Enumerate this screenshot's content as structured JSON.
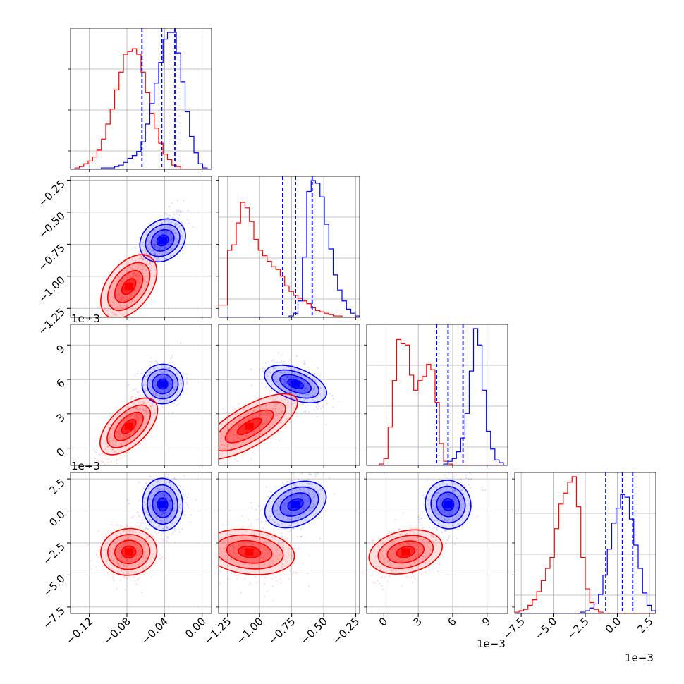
{
  "chart_data": {
    "type": "corner",
    "colors": {
      "series_a": "#0000ff",
      "series_b": "#ff0000",
      "grid": "#b0b0b0"
    },
    "grid": true,
    "n_params": 4,
    "ranges": [
      [
        -0.14,
        0.01
      ],
      [
        -1.32,
        -0.22
      ],
      [
        -1.5,
        10.8
      ],
      [
        -8.0,
        3.0
      ]
    ],
    "scale_labels": {
      "p1_row": "1e−3",
      "p2_row": "1e−3",
      "p2_col": "1e−3",
      "p3_col": "1e−3"
    },
    "ticks": {
      "x": [
        {
          "values": [
            -0.12,
            -0.08,
            -0.04,
            0.0
          ],
          "labels": [
            "−0.12",
            "−0.08",
            "−0.04",
            "0.00"
          ]
        },
        {
          "values": [
            -1.25,
            -1.0,
            -0.75,
            -0.5,
            -0.25
          ],
          "labels": [
            "−1.25",
            "−1.00",
            "−0.75",
            "−0.50",
            "−0.25"
          ]
        },
        {
          "values": [
            0,
            3,
            6,
            9
          ],
          "labels": [
            "0",
            "3",
            "6",
            "9"
          ]
        },
        {
          "values": [
            -7.5,
            -5.0,
            -2.5,
            0.0,
            2.5
          ],
          "labels": [
            "−7.5",
            "−5.0",
            "−2.5",
            "0.0",
            "2.5"
          ]
        }
      ],
      "y": [
        null,
        {
          "values": [
            -1.25,
            -1.0,
            -0.75,
            -0.5,
            -0.25
          ],
          "labels": [
            "−1.25",
            "−1.00",
            "−0.75",
            "−0.50",
            "−0.25"
          ]
        },
        {
          "values": [
            0,
            3,
            6,
            9
          ],
          "labels": [
            "0",
            "3",
            "6",
            "9"
          ]
        },
        {
          "values": [
            -7.5,
            -5.0,
            -2.5,
            0.0,
            2.5
          ],
          "labels": [
            "−7.5",
            "−5.0",
            "−2.5",
            "0.0",
            "2.5"
          ]
        }
      ]
    },
    "series": [
      {
        "key": "series_a",
        "means": [
          -0.042,
          -0.72,
          5.6,
          0.5
        ],
        "stds": [
          0.011,
          0.11,
          0.95,
          1.1
        ],
        "quantiles": [
          [
            -0.064,
            -0.043,
            -0.029
          ],
          [
            -0.82,
            -0.72,
            -0.59
          ],
          [
            4.6,
            5.6,
            6.9
          ],
          [
            -0.9,
            0.4,
            1.2
          ]
        ],
        "corr": [
          [
            1,
            0.55,
            0.1,
            0.05
          ],
          [
            0.55,
            1,
            -0.5,
            0.45
          ],
          [
            0.1,
            -0.5,
            1,
            0.2
          ],
          [
            0.05,
            0.45,
            0.2,
            1
          ]
        ]
      },
      {
        "key": "series_b",
        "means": [
          -0.078,
          -1.08,
          1.9,
          -3.2
        ],
        "stds": [
          0.015,
          0.17,
          1.5,
          1.0
        ],
        "quantiles": [],
        "corr": [
          [
            1,
            0.85,
            0.8,
            0.1
          ],
          [
            0.85,
            1,
            0.75,
            -0.2
          ],
          [
            0.8,
            0.75,
            1,
            0.3
          ],
          [
            0.1,
            -0.2,
            0.3,
            1
          ]
        ]
      }
    ],
    "histograms": [
      {
        "series_a": [
          0,
          0,
          0,
          0,
          0,
          0,
          0,
          1,
          1,
          1,
          2,
          3,
          5,
          8,
          10,
          13,
          20,
          33,
          48,
          63,
          78,
          95,
          100,
          100,
          85,
          64,
          42,
          24,
          12,
          4,
          1,
          0
        ],
        "series_b": [
          0,
          1,
          2,
          4,
          6,
          9,
          14,
          22,
          33,
          44,
          58,
          71,
          84,
          86,
          88,
          84,
          71,
          56,
          41,
          30,
          19,
          11,
          7,
          3,
          2,
          0,
          0,
          0,
          0,
          0,
          0,
          0
        ]
      },
      {
        "series_a": [
          0,
          0,
          0,
          0,
          0,
          0,
          0,
          0,
          0,
          0,
          0,
          0,
          0,
          0,
          0,
          0,
          1,
          3,
          12,
          44,
          92,
          100,
          98,
          88,
          68,
          50,
          31,
          20,
          12,
          6,
          3,
          1
        ],
        "series_b": [
          9,
          9,
          49,
          53,
          69,
          84,
          80,
          70,
          57,
          49,
          45,
          41,
          37,
          35,
          30,
          23,
          19,
          16,
          14,
          12,
          10,
          7,
          5,
          4,
          3,
          2,
          1,
          1,
          0,
          0,
          0,
          0
        ]
      },
      {
        "series_a": [
          0,
          0,
          0,
          0,
          0,
          0,
          0,
          0,
          0,
          0,
          0,
          0,
          0,
          0,
          0,
          0,
          0,
          0,
          1,
          3,
          5,
          10,
          20,
          38,
          69,
          100,
          88,
          55,
          25,
          12,
          4,
          2,
          0
        ],
        "series_b": [
          0,
          0,
          0,
          1,
          5,
          28,
          62,
          92,
          89,
          88,
          66,
          55,
          62,
          65,
          74,
          70,
          46,
          16,
          3,
          1,
          0,
          0,
          0,
          0,
          0,
          0,
          0,
          0,
          0,
          0,
          0,
          0,
          0
        ]
      },
      {
        "series_a": [
          0,
          0,
          0,
          0,
          0,
          0,
          0,
          0,
          0,
          0,
          0,
          0,
          0,
          0,
          0,
          1,
          2,
          4,
          7,
          14,
          28,
          47,
          66,
          77,
          87,
          85,
          69,
          50,
          33,
          15,
          6,
          2
        ],
        "series_b": [
          1,
          2,
          3,
          6,
          10,
          16,
          24,
          33,
          41,
          62,
          80,
          88,
          96,
          100,
          78,
          41,
          18,
          8,
          3,
          1,
          0,
          0,
          0,
          0,
          0,
          0,
          0,
          0,
          0,
          0,
          0,
          0
        ]
      }
    ]
  }
}
